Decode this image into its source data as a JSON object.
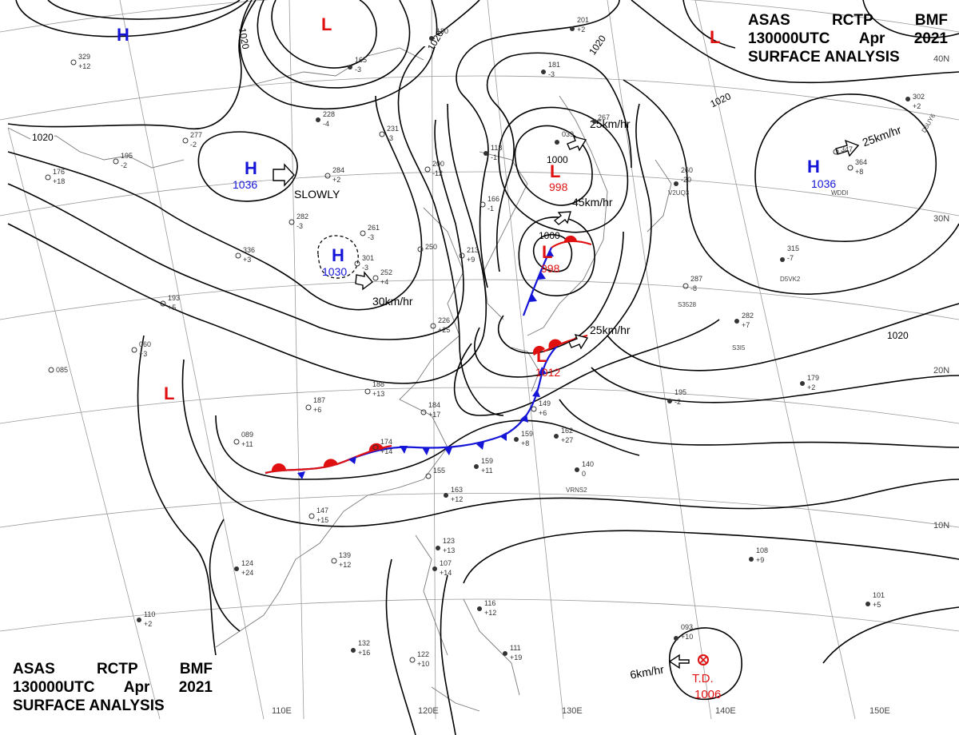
{
  "header": {
    "line1": [
      "ASAS",
      "RCTP",
      "BMF"
    ],
    "line2": [
      "130000UTC",
      "Apr",
      "2021"
    ],
    "line3": "SURFACE ANALYSIS"
  },
  "colors": {
    "high": "#1515d8",
    "low": "#e01010",
    "cold_front": "#1515d8",
    "warm_front": "#e01010",
    "isobar": "#000000"
  },
  "graticule": {
    "lon_labels": [
      "110E",
      "120E",
      "130E",
      "140E",
      "150E"
    ],
    "lat_labels": [
      "40N",
      "30N",
      "20N",
      "10N"
    ]
  },
  "centers": {
    "highs": [
      {
        "symbol": "H",
        "pressure": ""
      },
      {
        "symbol": "H",
        "pressure": "1036"
      },
      {
        "symbol": "H",
        "pressure": "1030"
      },
      {
        "symbol": "H",
        "pressure": "1036"
      }
    ],
    "lows": [
      {
        "symbol": "L",
        "pressure": ""
      },
      {
        "symbol": "L",
        "pressure": "998"
      },
      {
        "symbol": "L",
        "pressure": "998"
      },
      {
        "symbol": "L",
        "pressure": "1012"
      },
      {
        "symbol": "L",
        "pressure": ""
      },
      {
        "symbol": "L",
        "pressure": ""
      }
    ],
    "td": {
      "label": "T.D.",
      "pressure": "1006"
    }
  },
  "isobar_labels": [
    "1020",
    "1020",
    "1020",
    "1020",
    "1020",
    "1000",
    "1000"
  ],
  "motions": [
    "SLOWLY",
    "30km/hr",
    "25km/hr",
    "45km/hr",
    "25km/hr",
    "25km/hr",
    "6km/hr"
  ],
  "stations": [
    {
      "p": "329",
      "t": "+12"
    },
    {
      "p": "195",
      "t": "-2"
    },
    {
      "p": "176",
      "t": "+18"
    },
    {
      "p": "277",
      "t": "-2"
    },
    {
      "p": "228",
      "t": "-4"
    },
    {
      "p": "336",
      "t": "+3"
    },
    {
      "p": "282",
      "t": "-3"
    },
    {
      "p": "284",
      "t": "+2"
    },
    {
      "p": "261",
      "t": "-3"
    },
    {
      "p": "301",
      "t": "-3"
    },
    {
      "p": "193",
      "t": "+5"
    },
    {
      "p": "060",
      "t": "+3"
    },
    {
      "p": "085",
      "t": ""
    },
    {
      "p": "252",
      "t": "+4"
    },
    {
      "p": "250",
      "t": ""
    },
    {
      "p": "213",
      "t": "+9"
    },
    {
      "p": "226",
      "t": "+25"
    },
    {
      "p": "231",
      "t": "-3"
    },
    {
      "p": "200",
      "t": "-12"
    },
    {
      "p": "118",
      "t": "-1"
    },
    {
      "p": "166",
      "t": "-1"
    },
    {
      "p": "165",
      "t": "-3"
    },
    {
      "p": "180",
      "t": ""
    },
    {
      "p": "181",
      "t": "-3"
    },
    {
      "p": "188",
      "t": "+13"
    },
    {
      "p": "187",
      "t": "+6"
    },
    {
      "p": "184",
      "t": "+17"
    },
    {
      "p": "089",
      "t": "+11"
    },
    {
      "p": "174",
      "t": "+14"
    },
    {
      "p": "155",
      "t": ""
    },
    {
      "p": "159",
      "t": "+8"
    },
    {
      "p": "159",
      "t": "+11"
    },
    {
      "p": "163",
      "t": "+12"
    },
    {
      "p": "149",
      "t": "+6"
    },
    {
      "p": "162",
      "t": "+27"
    },
    {
      "p": "140",
      "t": "0"
    },
    {
      "p": "147",
      "t": "+15"
    },
    {
      "p": "139",
      "t": "+12"
    },
    {
      "p": "124",
      "t": "+24"
    },
    {
      "p": "123",
      "t": "+13"
    },
    {
      "p": "107",
      "t": "+14"
    },
    {
      "p": "116",
      "t": "+12"
    },
    {
      "p": "110",
      "t": "+2"
    },
    {
      "p": "132",
      "t": "+16"
    },
    {
      "p": "122",
      "t": "+10"
    },
    {
      "p": "111",
      "t": "+19"
    },
    {
      "p": "093",
      "t": "+10"
    },
    {
      "p": "108",
      "t": "+9"
    },
    {
      "p": "101",
      "t": "+5"
    },
    {
      "p": "315",
      "t": "-7"
    },
    {
      "p": "287",
      "t": "-8"
    },
    {
      "p": "282",
      "t": "+7"
    },
    {
      "p": "302",
      "t": "+2"
    },
    {
      "p": "347",
      "t": ""
    },
    {
      "p": "364",
      "t": "+8"
    },
    {
      "p": "195",
      "t": "-2"
    },
    {
      "p": "179",
      "t": "+2"
    },
    {
      "p": "201",
      "t": "+2"
    },
    {
      "p": "039",
      "t": ""
    },
    {
      "p": "267",
      "t": ""
    },
    {
      "p": "260",
      "t": "-20"
    }
  ],
  "ship_ids": [
    "VRNS2",
    "D5VK2",
    "S3I5",
    "WDDI",
    "D5UY6",
    "S3528",
    "V2UQ3"
  ]
}
